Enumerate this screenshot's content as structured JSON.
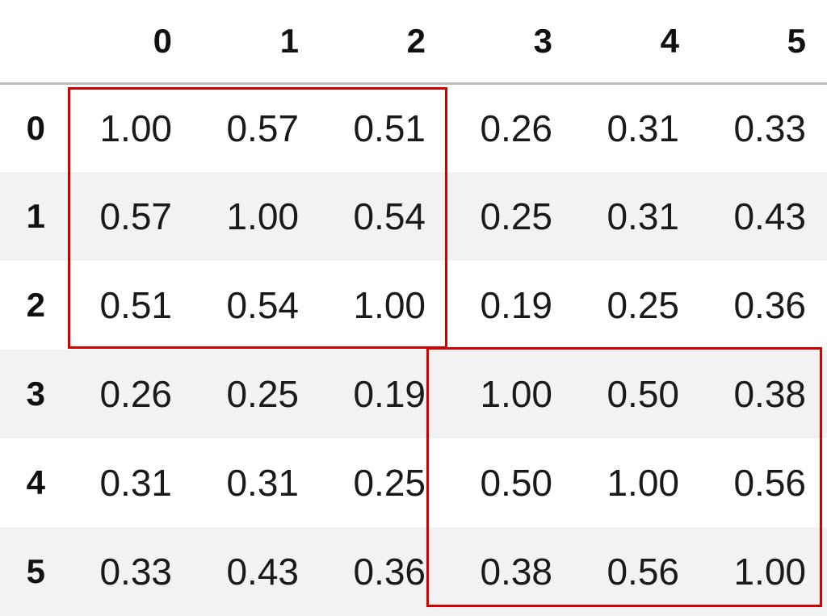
{
  "table": {
    "columns": [
      "0",
      "1",
      "2",
      "3",
      "4",
      "5"
    ],
    "rows": [
      {
        "index": "0",
        "cells": [
          "1.00",
          "0.57",
          "0.51",
          "0.26",
          "0.31",
          "0.33"
        ]
      },
      {
        "index": "1",
        "cells": [
          "0.57",
          "1.00",
          "0.54",
          "0.25",
          "0.31",
          "0.43"
        ]
      },
      {
        "index": "2",
        "cells": [
          "0.51",
          "0.54",
          "1.00",
          "0.19",
          "0.25",
          "0.36"
        ]
      },
      {
        "index": "3",
        "cells": [
          "0.26",
          "0.25",
          "0.19",
          "1.00",
          "0.50",
          "0.38"
        ]
      },
      {
        "index": "4",
        "cells": [
          "0.31",
          "0.31",
          "0.25",
          "0.50",
          "1.00",
          "0.56"
        ]
      },
      {
        "index": "5",
        "cells": [
          "0.33",
          "0.43",
          "0.36",
          "0.38",
          "0.56",
          "1.00"
        ]
      }
    ]
  },
  "highlights": [
    {
      "rows": [
        "0",
        "1",
        "2"
      ],
      "columns": [
        "0",
        "1",
        "2"
      ],
      "color": "#d40000"
    },
    {
      "rows": [
        "3",
        "4",
        "5"
      ],
      "columns": [
        "3",
        "4",
        "5"
      ],
      "color": "#d40000"
    }
  ],
  "colors": {
    "stripe": "#f2f2f2",
    "header_rule": "#bdbdbd",
    "highlight": "#d40000"
  }
}
